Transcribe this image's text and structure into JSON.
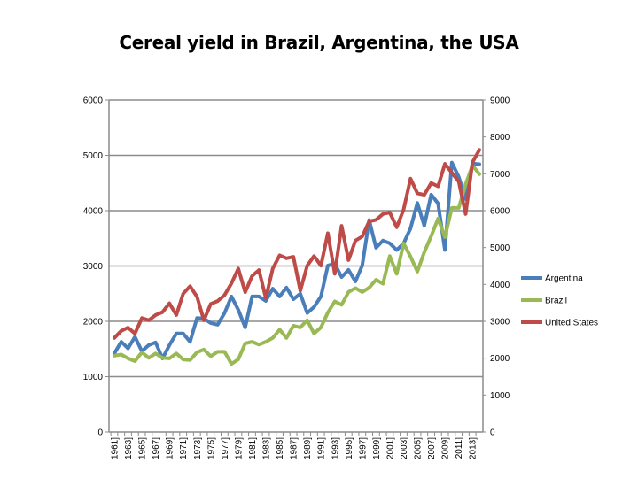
{
  "chart_data": {
    "type": "line",
    "title": "Cereal yield in Brazil, Argentina, the USA",
    "xlabel": "",
    "ylabel": "",
    "x": [
      1961,
      1962,
      1963,
      1964,
      1965,
      1966,
      1967,
      1968,
      1969,
      1970,
      1971,
      1972,
      1973,
      1974,
      1975,
      1976,
      1977,
      1978,
      1979,
      1980,
      1981,
      1982,
      1983,
      1984,
      1985,
      1986,
      1987,
      1988,
      1989,
      1990,
      1991,
      1992,
      1993,
      1994,
      1995,
      1996,
      1997,
      1998,
      1999,
      2000,
      2001,
      2002,
      2003,
      2004,
      2005,
      2006,
      2007,
      2008,
      2009,
      2010,
      2011,
      2012,
      2013,
      2014
    ],
    "x_tick_labels": [
      "1961]",
      "1963]",
      "1965]",
      "1967]",
      "1969]",
      "1971]",
      "1973]",
      "1975]",
      "1977]",
      "1979]",
      "1981]",
      "1983]",
      "1985]",
      "1987]",
      "1989]",
      "1991]",
      "1993]",
      "1995]",
      "1997]",
      "1999]",
      "2001]",
      "2003]",
      "2005]",
      "2007]",
      "2009]",
      "2011]",
      "2013]"
    ],
    "y_left": {
      "range": [
        0,
        6000
      ],
      "ticks": [
        "0",
        "1000",
        "2000",
        "3000",
        "4000",
        "5000",
        "6000"
      ]
    },
    "y_right": {
      "range": [
        0,
        9000
      ],
      "ticks": [
        "0",
        "1000",
        "2000",
        "3000",
        "4000",
        "5000",
        "6000",
        "7000",
        "8000",
        "9000"
      ]
    },
    "grid": true,
    "legend_position": "right",
    "series": [
      {
        "name": "Argentina",
        "axis": "left",
        "color": "#4a7ebb",
        "values": [
          1420,
          1630,
          1510,
          1720,
          1460,
          1570,
          1620,
          1330,
          1570,
          1780,
          1780,
          1630,
          2060,
          2050,
          1970,
          1940,
          2150,
          2450,
          2210,
          1890,
          2450,
          2450,
          2370,
          2590,
          2450,
          2610,
          2400,
          2500,
          2150,
          2260,
          2450,
          3010,
          3040,
          2800,
          2930,
          2720,
          3010,
          3830,
          3330,
          3460,
          3410,
          3290,
          3410,
          3680,
          4140,
          3730,
          4290,
          4130,
          3290,
          4870,
          4610,
          4210,
          4850,
          4840
        ]
      },
      {
        "name": "Brazil",
        "axis": "left",
        "color": "#98b954",
        "values": [
          1380,
          1400,
          1330,
          1280,
          1440,
          1340,
          1420,
          1340,
          1330,
          1420,
          1310,
          1300,
          1440,
          1490,
          1370,
          1450,
          1450,
          1230,
          1310,
          1600,
          1630,
          1580,
          1630,
          1700,
          1850,
          1700,
          1920,
          1890,
          2020,
          1780,
          1890,
          2160,
          2360,
          2300,
          2530,
          2600,
          2530,
          2610,
          2750,
          2680,
          3180,
          2860,
          3410,
          3170,
          2900,
          3250,
          3540,
          3860,
          3520,
          4050,
          4050,
          4480,
          4820,
          4660
        ]
      },
      {
        "name": "United States",
        "axis": "right",
        "color": "#be4b48",
        "values": [
          2550,
          2740,
          2830,
          2670,
          3090,
          3030,
          3170,
          3250,
          3490,
          3170,
          3750,
          3950,
          3670,
          3030,
          3470,
          3550,
          3710,
          4030,
          4430,
          3790,
          4230,
          4390,
          3630,
          4430,
          4790,
          4710,
          4750,
          3830,
          4510,
          4770,
          4510,
          5390,
          4290,
          5590,
          4660,
          5190,
          5300,
          5710,
          5750,
          5910,
          5950,
          5550,
          6030,
          6870,
          6470,
          6430,
          6750,
          6660,
          7270,
          7030,
          6790,
          5910,
          7310,
          7650
        ]
      }
    ]
  }
}
